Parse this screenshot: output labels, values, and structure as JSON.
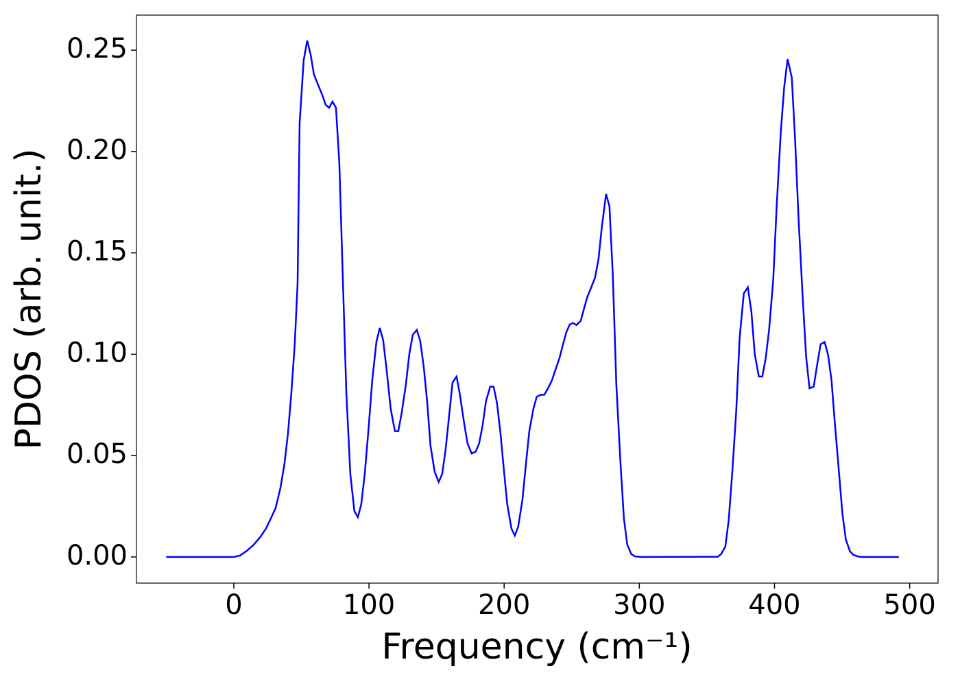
{
  "chart_data": {
    "type": "line",
    "xlabel": "Frequency (cm⁻¹)",
    "ylabel": "PDOS (arb. unit.)",
    "x": [
      -50,
      0,
      4.6,
      9.6,
      14.7,
      19.8,
      23.8,
      27.4,
      30.9,
      34.5,
      37.5,
      40.1,
      42.6,
      45.1,
      47.2,
      48.7,
      51.7,
      54.3,
      56.8,
      59.3,
      62.9,
      65.4,
      68.0,
      70.5,
      73.0,
      75.6,
      78.1,
      80.6,
      83.2,
      86.2,
      89.2,
      91.8,
      94.3,
      96.9,
      99.9,
      102.4,
      105.5,
      108.0,
      110.5,
      113.1,
      116.1,
      119.2,
      121.7,
      124.2,
      127.3,
      129.8,
      132.4,
      135.4,
      137.9,
      140.5,
      143.0,
      145.5,
      148.6,
      151.6,
      154.2,
      156.7,
      159.2,
      161.8,
      164.8,
      167.3,
      170.4,
      172.9,
      176.0,
      179.0,
      181.5,
      184.1,
      186.6,
      189.7,
      192.2,
      194.7,
      197.3,
      199.8,
      202.3,
      205.4,
      207.9,
      210.4,
      213.5,
      216.0,
      218.6,
      221.6,
      224.1,
      227.2,
      229.7,
      232.3,
      235.3,
      237.8,
      240.9,
      243.4,
      245.9,
      248.5,
      251.0,
      253.5,
      256.6,
      259.1,
      261.7,
      264.2,
      267.2,
      269.8,
      272.3,
      275.4,
      277.9,
      280.4,
      283.0,
      286.0,
      288.6,
      291.1,
      294.1,
      296.7,
      301.2,
      358.0,
      360.5,
      363.6,
      366.1,
      368.7,
      371.7,
      374.2,
      377.3,
      380.3,
      382.9,
      385.4,
      388.4,
      391.0,
      393.5,
      396.0,
      399.1,
      401.6,
      404.7,
      407.2,
      409.7,
      412.8,
      415.3,
      417.8,
      420.9,
      423.4,
      425.9,
      429.0,
      431.6,
      434.1,
      437.1,
      439.7,
      442.2,
      444.7,
      447.8,
      450.3,
      452.8,
      455.9,
      458.4,
      461.5,
      464.0,
      492
    ],
    "series": [
      {
        "name": "PDOS",
        "color": "#0000ff",
        "values": [
          0,
          0,
          0.0007,
          0.003,
          0.006,
          0.01,
          0.014,
          0.019,
          0.024,
          0.034,
          0.046,
          0.061,
          0.081,
          0.105,
          0.135,
          0.214,
          0.245,
          0.2547,
          0.248,
          0.238,
          0.232,
          0.228,
          0.223,
          0.2216,
          0.2246,
          0.2216,
          0.194,
          0.139,
          0.082,
          0.041,
          0.0227,
          0.0196,
          0.026,
          0.041,
          0.065,
          0.087,
          0.106,
          0.113,
          0.107,
          0.092,
          0.073,
          0.062,
          0.062,
          0.071,
          0.085,
          0.0998,
          0.1096,
          0.112,
          0.1066,
          0.094,
          0.077,
          0.055,
          0.042,
          0.037,
          0.041,
          0.053,
          0.069,
          0.086,
          0.089,
          0.08,
          0.066,
          0.056,
          0.051,
          0.052,
          0.056,
          0.065,
          0.077,
          0.084,
          0.084,
          0.076,
          0.061,
          0.043,
          0.026,
          0.014,
          0.0105,
          0.015,
          0.028,
          0.045,
          0.062,
          0.073,
          0.079,
          0.08,
          0.08,
          0.083,
          0.087,
          0.092,
          0.098,
          0.1045,
          0.1106,
          0.1147,
          0.1154,
          0.1144,
          0.1164,
          0.1225,
          0.1286,
          0.1326,
          0.1377,
          0.1468,
          0.163,
          0.179,
          0.173,
          0.139,
          0.085,
          0.047,
          0.019,
          0.006,
          0.0014,
          0.0003,
          0,
          0.0001,
          0.0014,
          0.005,
          0.018,
          0.041,
          0.072,
          0.108,
          0.13,
          0.133,
          0.121,
          0.1,
          0.089,
          0.089,
          0.098,
          0.112,
          0.137,
          0.173,
          0.21,
          0.232,
          0.2456,
          0.2365,
          0.205,
          0.167,
          0.1275,
          0.0988,
          0.0832,
          0.084,
          0.095,
          0.1049,
          0.106,
          0.0995,
          0.087,
          0.0656,
          0.041,
          0.021,
          0.0085,
          0.0027,
          0.001,
          0.0003,
          0,
          0
        ]
      }
    ],
    "xlim": [
      -72,
      521
    ],
    "xticks": [
      0,
      100,
      200,
      300,
      400,
      500
    ],
    "ylim": [
      -0.0129,
      0.2673
    ],
    "yticks": [
      {
        "value": 0,
        "label": "0.00"
      },
      {
        "value": 0.05,
        "label": "0.05"
      },
      {
        "value": 0.1,
        "label": "0.10"
      },
      {
        "value": 0.15,
        "label": "0.15"
      },
      {
        "value": 0.2,
        "label": "0.20"
      },
      {
        "value": 0.25,
        "label": "0.25"
      }
    ]
  }
}
